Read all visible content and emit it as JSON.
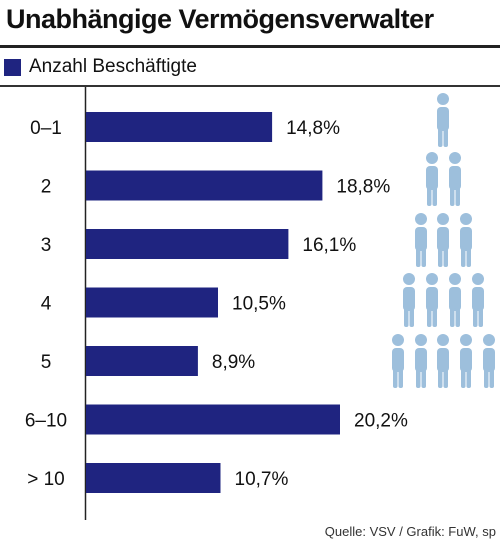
{
  "chart_data": {
    "type": "bar",
    "orientation": "horizontal",
    "title": "Unabhängige Vermögensverwalter",
    "legend": [
      "Anzahl Beschäftigte"
    ],
    "categories": [
      "0–1",
      "2",
      "3",
      "4",
      "5",
      "6–10",
      "> 10"
    ],
    "values": [
      14.8,
      18.8,
      16.1,
      10.5,
      8.9,
      20.2,
      10.7
    ],
    "value_labels": [
      "14,8%",
      "18,8%",
      "16,1%",
      "10,5%",
      "8,9%",
      "20,2%",
      "10,7%"
    ],
    "unit": "%",
    "xlim": [
      0,
      20.2
    ],
    "grid": false,
    "colors": {
      "bar": "#1f2480",
      "people": "#9dbfdc"
    },
    "decoration": "people-pyramid-icon"
  },
  "source": "Quelle: VSV / Grafik: FuW, sp"
}
